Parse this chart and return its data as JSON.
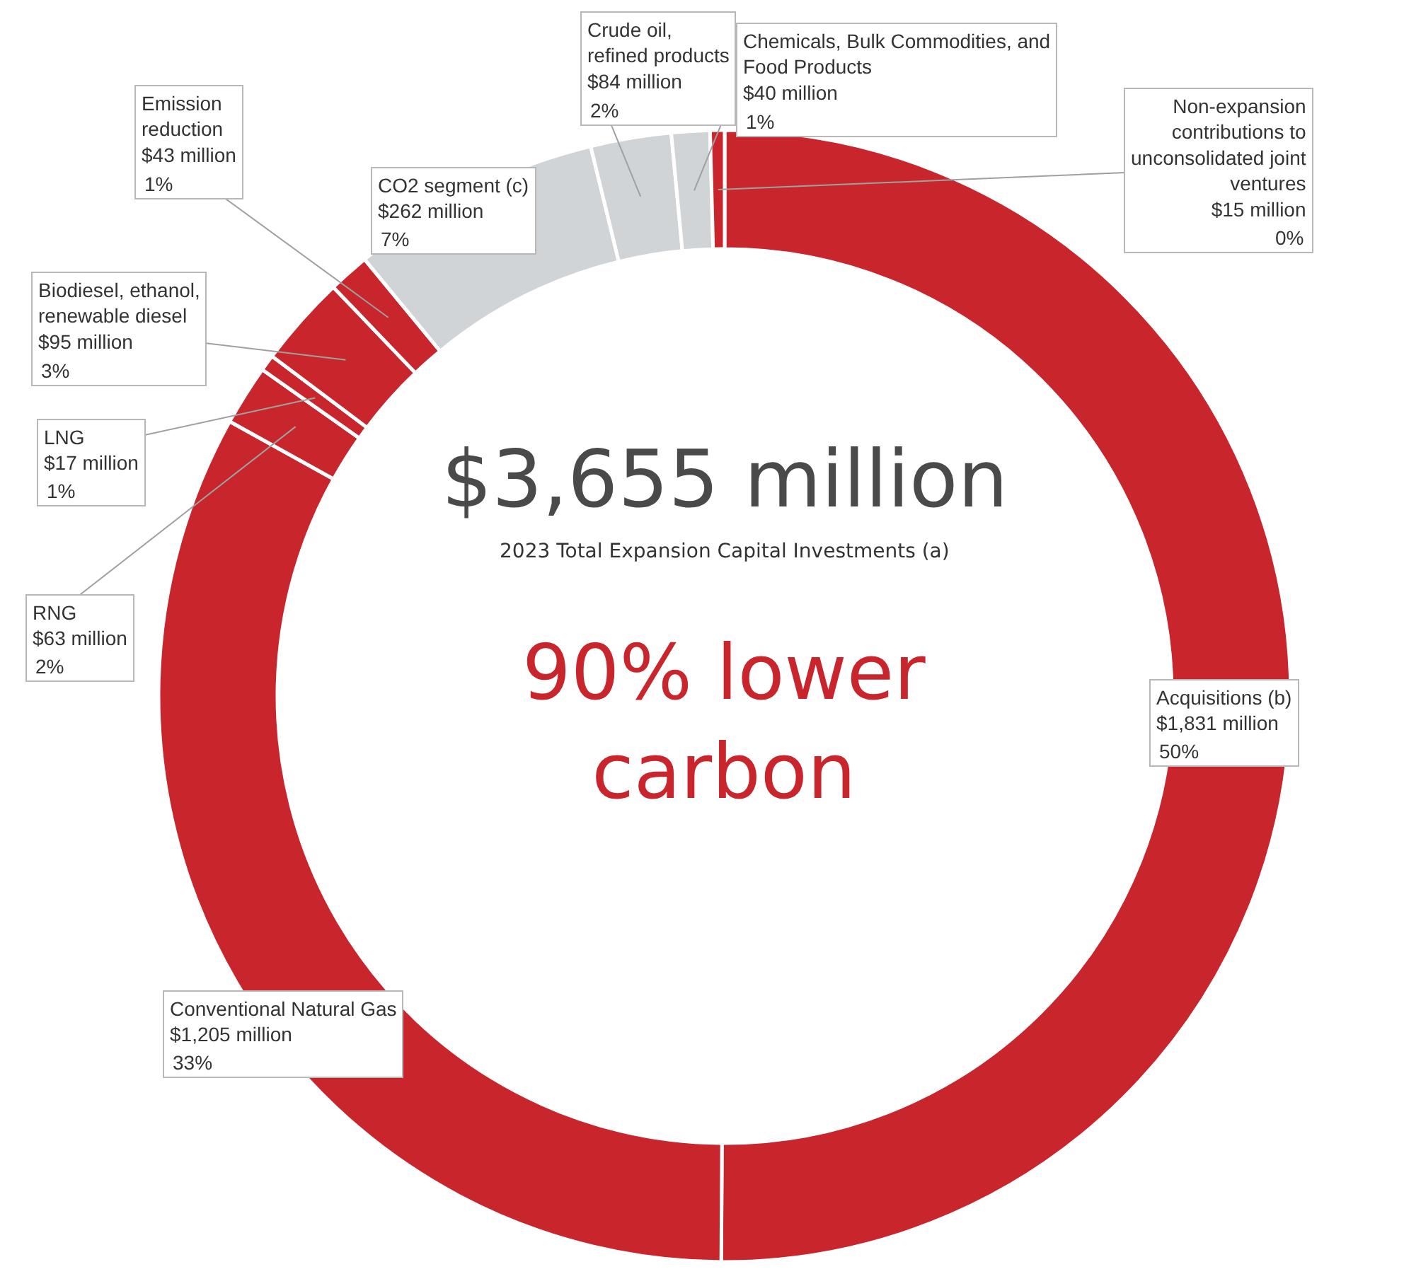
{
  "chart_data": {
    "type": "donut",
    "categories": [
      "Acquisitions (b)",
      "Conventional Natural Gas",
      "RNG",
      "LNG",
      "Biodiesel, ethanol, renewable diesel",
      "Emission reduction",
      "CO2 segment (c)",
      "Crude oil, refined products",
      "Chemicals, Bulk Commodities, and Food Products",
      "Non-expansion contributions to unconsolidated joint ventures"
    ],
    "values": [
      1831,
      1205,
      63,
      17,
      95,
      43,
      262,
      84,
      40,
      15
    ],
    "value_labels": [
      "$1,831 million",
      "$1,205 million",
      "$63 million",
      "$17 million",
      "$95 million",
      "$43 million",
      "$262 million",
      "$84 million",
      "$40 million",
      "$15 million"
    ],
    "colors": [
      "#c8262c",
      "#c8262c",
      "#c8262c",
      "#c8262c",
      "#c8262c",
      "#c8262c",
      "#d1d4d7",
      "#d1d4d7",
      "#d1d4d7",
      "#c8262c"
    ],
    "annotations": [
      "$3,655 million",
      "2023 Total Expansion Capital Investments (a)",
      "90% lower carbon",
      {
        "text": "50%",
        "x": "Acquisitions (b)"
      },
      {
        "text": "33%",
        "x": "Conventional Natural Gas"
      },
      {
        "text": "2%",
        "x": "RNG"
      },
      {
        "text": "1%",
        "x": "LNG"
      },
      {
        "text": "3%",
        "x": "Biodiesel, ethanol, renewable diesel"
      },
      {
        "text": "1%",
        "x": "Emission reduction"
      },
      {
        "text": "7%",
        "x": "CO2 segment (c)"
      },
      {
        "text": "2%",
        "x": "Crude oil, refined products"
      },
      {
        "text": "1%",
        "x": "Chemicals, Bulk Commodities, and Food Products"
      },
      {
        "text": "0%",
        "x": "Non-expansion contributions to unconsolidated joint ventures"
      }
    ],
    "legend": false
  }
}
